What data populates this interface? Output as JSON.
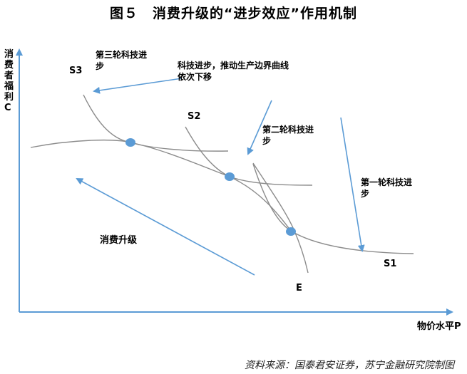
{
  "title": "图５　消费升级的“进步效应”作用机制",
  "source": "资料来源：国泰君安证券，苏宁金融研究院制图",
  "axes": {
    "y_label": "消费者福利C",
    "x_label": "物价水平P"
  },
  "labels": {
    "s3": "S3",
    "s2": "S2",
    "s1": "S1",
    "e": "E",
    "third_round_line1": "第三轮科技进",
    "third_round_line2": "步",
    "tech_progress_line1": "科技进步，推动生产边界曲线",
    "tech_progress_line2": "依次下移",
    "second_round_line1": "第二轮科技进",
    "second_round_line2": "步",
    "first_round_line1": "第一轮科技进",
    "first_round_line2": "步",
    "consumption_upgrade": "消费升级"
  },
  "colors": {
    "axis": "#5b9bd5",
    "arrow": "#5b9bd5",
    "curve": "#7f7f7f",
    "point": "#5b9bd5"
  }
}
